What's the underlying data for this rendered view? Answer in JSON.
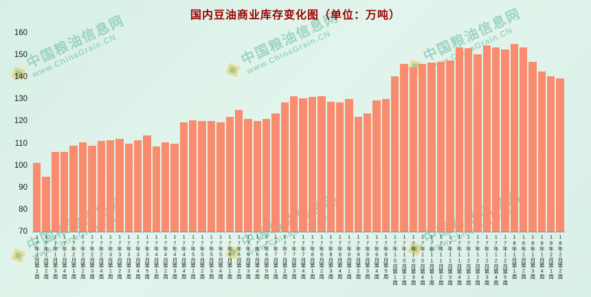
{
  "title": "国内豆油商业库存变化图（单位：万吨）",
  "watermark": {
    "line1": "中国粮油信息网",
    "line2": "www.ChinaGrain.CN"
  },
  "colors": {
    "bar": "#f98c6e",
    "title": "#990000",
    "background": "#ddf2e9",
    "watermark": "rgba(106,184,162,0.55)"
  },
  "chart_data": {
    "type": "bar",
    "title": "国内豆油商业库存变化图（单位：万吨）",
    "ylabel": "",
    "xlabel": "",
    "ylim": [
      70,
      160
    ],
    "ytick_step": 10,
    "grid": false,
    "legend": "none",
    "categories": [
      "17年1月第1周",
      "17年1月第2周",
      "17年1月第3周",
      "17年1月第4周",
      "17年2月第1周",
      "17年2月第2周",
      "17年2月第3周",
      "17年2月第4周",
      "17年3月第1周",
      "17年3月第2周",
      "17年3月第3周",
      "17年3月第4周",
      "17年3月第5周",
      "17年4月第1周",
      "17年4月第2周",
      "17年4月第3周",
      "17年4月第4周",
      "17年5月第1周",
      "17年5月第2周",
      "17年5月第3周",
      "17年5月第4周",
      "17年6月第1周",
      "17年6月第2周",
      "17年6月第3周",
      "17年6月第4周",
      "17年6月第5周",
      "17年7月第1周",
      "17年7月第2周",
      "17年7月第3周",
      "17年7月第4周",
      "17年8月第1周",
      "17年8月第2周",
      "17年8月第3周",
      "17年8月第4周",
      "17年9月第1周",
      "17年9月第2周",
      "17年9月第3周",
      "17年9月第4周",
      "17年9月第5周",
      "17年10月第1周",
      "17年10月第2周",
      "17年10月第3周",
      "17年10月第4周",
      "17年11月第1周",
      "17年11月第2周",
      "17年11月第3周",
      "17年11月第4周",
      "17年12月第1周",
      "17年12月第2周",
      "17年12月第3周",
      "17年12月第4周",
      "17年12月第5周",
      "18年1月第1周",
      "18年1月第2周",
      "18年1月第3周",
      "18年1月第4周",
      "18年2月第1周",
      "18年2月第2周"
    ],
    "values": [
      101,
      95,
      106,
      106,
      109,
      110.5,
      109,
      111,
      111.5,
      112,
      110,
      111.5,
      113.5,
      108.5,
      110.5,
      110,
      119.5,
      120.5,
      120,
      120,
      119.5,
      122,
      125,
      121,
      120,
      121,
      123.5,
      128.5,
      131.5,
      130.5,
      131,
      131.5,
      129,
      128.5,
      130,
      122,
      123.5,
      129.5,
      130,
      140.5,
      146,
      144.5,
      146,
      146.5,
      147,
      147.5,
      153.5,
      153,
      150.5,
      154.5,
      153.5,
      152.5,
      155,
      153.5,
      147,
      142.5,
      140.5,
      139.5
    ]
  }
}
